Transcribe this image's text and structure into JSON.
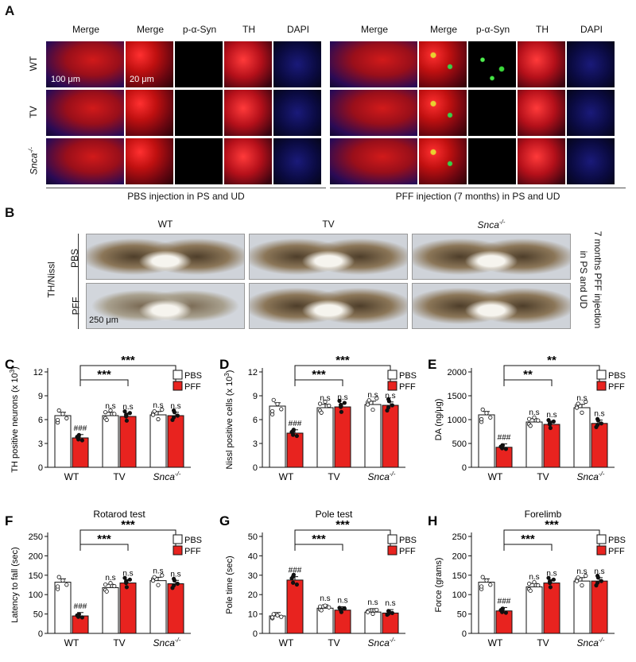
{
  "panels": {
    "A": {
      "label": "A",
      "headers": [
        "Merge",
        "Merge",
        "p-α-Syn",
        "TH",
        "DAPI"
      ],
      "rows": [
        "WT",
        "TV",
        "Snca"
      ],
      "row_sup": "-/-",
      "scale_left": "100 μm",
      "scale_zoom": "20 μm",
      "caption_left": "PBS injection in PS and UD",
      "caption_right": "PFF injection (7 months) in PS and UD"
    },
    "B": {
      "label": "B",
      "cols": [
        "WT",
        "TV",
        "Snca"
      ],
      "col_sup": "-/-",
      "side_label": "TH/Nissl",
      "rows": [
        "PBS",
        "PFF"
      ],
      "scale": "250 μm",
      "right_note_1": "7 months PFF injection",
      "right_note_2": "in PS and UD"
    }
  },
  "legend": {
    "pbs": "PBS",
    "pff": "PFF",
    "pbs_color": "#ffffff",
    "pff_color": "#e8231f"
  },
  "chart_data": [
    {
      "panel": "C",
      "type": "bar",
      "title": "",
      "ylabel": "TH positive neurons (x 10",
      "ylabel_sup": "3",
      "ylabel_end": ")",
      "categories": [
        "WT",
        "TV",
        "Snca"
      ],
      "yticks": [
        0,
        3,
        6,
        9,
        12
      ],
      "ylim": [
        0,
        12
      ],
      "series": [
        {
          "name": "PBS",
          "values": [
            6.5,
            6.5,
            6.6
          ]
        },
        {
          "name": "PFF",
          "values": [
            3.7,
            6.4,
            6.5
          ]
        }
      ],
      "sig_pff": [
        "###",
        "n.s",
        "n.s"
      ],
      "sig_pbs": [
        "",
        "n.s",
        "n.s"
      ],
      "brackets": [
        "***",
        "***"
      ]
    },
    {
      "panel": "D",
      "type": "bar",
      "title": "",
      "ylabel": "Nissl positive cells (x 10",
      "ylabel_sup": "3",
      "ylabel_end": ")",
      "categories": [
        "WT",
        "TV",
        "Snca"
      ],
      "yticks": [
        0,
        3,
        6,
        9,
        12
      ],
      "ylim": [
        0,
        12
      ],
      "series": [
        {
          "name": "PBS",
          "values": [
            7.7,
            7.5,
            7.9
          ]
        },
        {
          "name": "PFF",
          "values": [
            4.3,
            7.6,
            7.8
          ]
        }
      ],
      "sig_pff": [
        "###",
        "n.s",
        "n.s"
      ],
      "sig_pbs": [
        "",
        "n.s",
        "n.s"
      ],
      "brackets": [
        "***",
        "***"
      ]
    },
    {
      "panel": "E",
      "type": "bar",
      "title": "",
      "ylabel": "DA (ng/μg)",
      "categories": [
        "WT",
        "TV",
        "Snca"
      ],
      "yticks": [
        0,
        500,
        1000,
        1500,
        2000
      ],
      "ylim": [
        0,
        2000
      ],
      "series": [
        {
          "name": "PBS",
          "values": [
            1100,
            950,
            1250
          ]
        },
        {
          "name": "PFF",
          "values": [
            420,
            900,
            920
          ]
        }
      ],
      "sig_pff": [
        "###",
        "n.s",
        "n.s"
      ],
      "sig_pbs": [
        "",
        "n.s",
        "n.s"
      ],
      "brackets": [
        "**",
        "**"
      ]
    },
    {
      "panel": "F",
      "type": "bar",
      "title": "Rotarod test",
      "ylabel": "Latency to fall (sec)",
      "categories": [
        "WT",
        "TV",
        "Snca"
      ],
      "yticks": [
        0,
        50,
        100,
        150,
        200,
        250
      ],
      "ylim": [
        0,
        250
      ],
      "series": [
        {
          "name": "PBS",
          "values": [
            132,
            118,
            136
          ]
        },
        {
          "name": "PFF",
          "values": [
            45,
            130,
            128
          ]
        }
      ],
      "sig_pff": [
        "###",
        "n.s",
        "n.s"
      ],
      "sig_pbs": [
        "",
        "n.s",
        "n.s"
      ],
      "brackets": [
        "***",
        "***"
      ]
    },
    {
      "panel": "G",
      "type": "bar",
      "title": "Pole test",
      "ylabel": "Pole time (sec)",
      "categories": [
        "WT",
        "TV",
        "Snca"
      ],
      "yticks": [
        0,
        10,
        20,
        30,
        40,
        50
      ],
      "ylim": [
        0,
        50
      ],
      "series": [
        {
          "name": "PBS",
          "values": [
            9,
            13,
            11
          ]
        },
        {
          "name": "PFF",
          "values": [
            27.5,
            12,
            10.5
          ]
        }
      ],
      "sig_pff": [
        "###",
        "n.s",
        "n.s"
      ],
      "sig_pbs": [
        "",
        "n.s",
        "n.s"
      ],
      "brackets": [
        "***",
        "***"
      ]
    },
    {
      "panel": "H",
      "type": "bar",
      "title": "Forelimb",
      "ylabel": "Force (grams)",
      "categories": [
        "WT",
        "TV",
        "Snca"
      ],
      "yticks": [
        0,
        50,
        100,
        150,
        200,
        250
      ],
      "ylim": [
        0,
        250
      ],
      "series": [
        {
          "name": "PBS",
          "values": [
            132,
            120,
            135
          ]
        },
        {
          "name": "PFF",
          "values": [
            58,
            130,
            135
          ]
        }
      ],
      "sig_pff": [
        "###",
        "n.s",
        "n.s"
      ],
      "sig_pbs": [
        "",
        "n.s",
        "n.s"
      ],
      "brackets": [
        "***",
        "***"
      ]
    }
  ],
  "cat_sup": "-/-"
}
